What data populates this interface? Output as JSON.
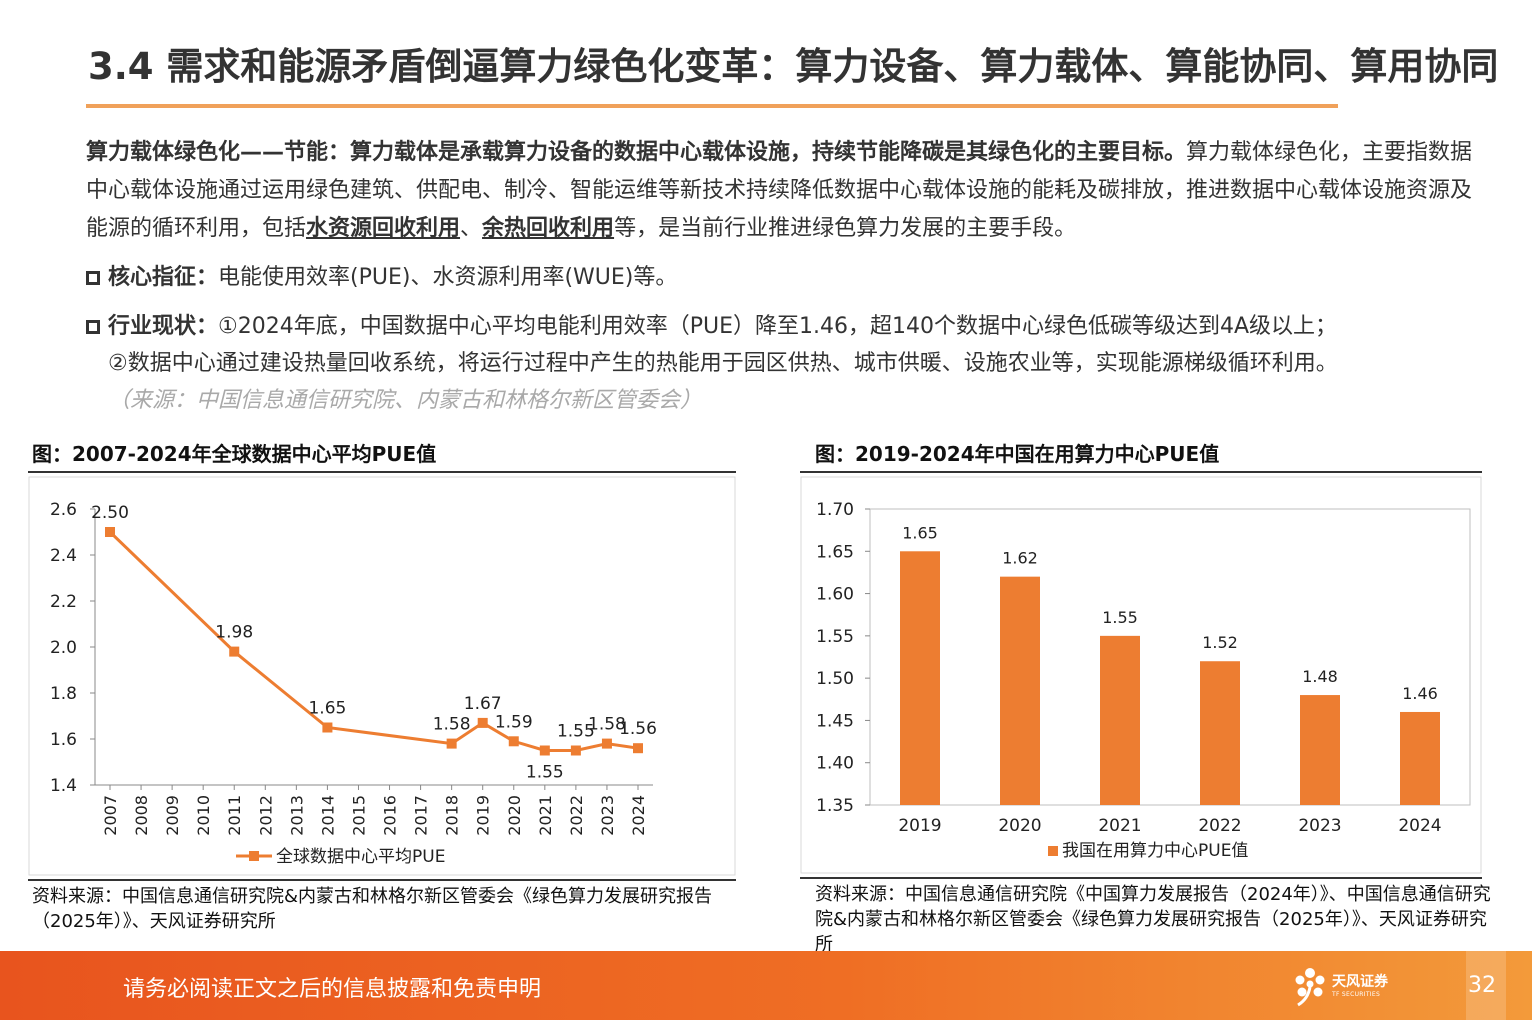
{
  "header": {
    "title": "3.4 需求和能源矛盾倒逼算力绿色化变革：算力设备、算力载体、算能协同、算用协同"
  },
  "intro": {
    "lead_bold": "算力载体绿色化——节能：算力载体是承载算力设备的数据中心载体设施，持续节能降碳是其绿色化的主要目标。",
    "text_1": "算力载体绿色化，主要指数据中心载体设施通过运用绿色建筑、供配电、制冷、智能运维等新技术持续降低数据中心载体设施的能耗及碳排放，推进数据中心载体设施资源及能源的循环利用，包括",
    "link_1": "水资源回收利用",
    "sep": "、",
    "link_2": "余热回收利用",
    "text_2": "等，是当前行业推进绿色算力发展的主要手段。"
  },
  "bullets": {
    "core": {
      "label": "核心指征：",
      "text": "电能使用效率(PUE)、水资源利用率(WUE)等。"
    },
    "status": {
      "label": "行业现状：",
      "line_1": "①2024年底，中国数据中心平均电能利用效率（PUE）降至1.46，超140个数据中心绿色低碳等级达到4A级以上；",
      "line_2": "②数据中心通过建设热量回收系统，将运行过程中产生的热能用于园区供热、城市供暖、设施农业等，实现能源梯级循环利用。",
      "source": "（来源：中国信息通信研究院、内蒙古和林格尔新区管委会）"
    }
  },
  "figures": {
    "left": {
      "title": "图：2007-2024年全球数据中心平均PUE值",
      "source": "资料来源：中国信息通信研究院&内蒙古和林格尔新区管委会《绿色算力发展研究报告（2025年）》、天风证券研究所"
    },
    "right": {
      "title": "图：2019-2024年中国在用算力中心PUE值",
      "source": "资料来源：中国信息通信研究院《中国算力发展报告（2024年）》、中国信息通信研究院&内蒙古和林格尔新区管委会《绿色算力发展研究报告（2025年）》、天风证券研究所"
    }
  },
  "chart_data": [
    {
      "type": "line",
      "categories": [
        "2007",
        "2008",
        "2009",
        "2010",
        "2011",
        "2012",
        "2013",
        "2014",
        "2015",
        "2016",
        "2017",
        "2018",
        "2019",
        "2020",
        "2021",
        "2022",
        "2023",
        "2024"
      ],
      "series": [
        {
          "name": "全球数据中心平均PUE",
          "points": [
            {
              "x": "2007",
              "y": 2.5,
              "label": "2.50"
            },
            {
              "x": "2011",
              "y": 1.98,
              "label": "1.98"
            },
            {
              "x": "2014",
              "y": 1.65,
              "label": "1.65"
            },
            {
              "x": "2018",
              "y": 1.58,
              "label": "1.58"
            },
            {
              "x": "2019",
              "y": 1.67,
              "label": "1.67"
            },
            {
              "x": "2020",
              "y": 1.59,
              "label": "1.59"
            },
            {
              "x": "2021",
              "y": 1.55,
              "label": "1.55"
            },
            {
              "x": "2022",
              "y": 1.55,
              "label": "1.55"
            },
            {
              "x": "2023",
              "y": 1.58,
              "label": "1.58"
            },
            {
              "x": "2024",
              "y": 1.56,
              "label": "1.56"
            }
          ],
          "color": "#ed7d31"
        }
      ],
      "yticks": [
        "1.4",
        "1.6",
        "1.8",
        "2.0",
        "2.2",
        "2.4",
        "2.6"
      ],
      "ylim": [
        1.4,
        2.6
      ],
      "legend": "bottom",
      "grid": false
    },
    {
      "type": "bar",
      "categories": [
        "2019",
        "2020",
        "2021",
        "2022",
        "2023",
        "2024"
      ],
      "series": [
        {
          "name": "我国在用算力中心PUE值",
          "values": [
            1.65,
            1.62,
            1.55,
            1.52,
            1.48,
            1.46
          ],
          "labels": [
            "1.65",
            "1.62",
            "1.55",
            "1.52",
            "1.48",
            "1.46"
          ],
          "color": "#ed7d31"
        }
      ],
      "yticks": [
        "1.35",
        "1.40",
        "1.45",
        "1.50",
        "1.55",
        "1.60",
        "1.65",
        "1.70"
      ],
      "ylim": [
        1.35,
        1.7
      ],
      "legend": "bottom",
      "grid": false
    }
  ],
  "footer": {
    "disclaimer": "请务必阅读正文之后的信息披露和免责申明",
    "logo_name": "天风证券",
    "logo_sub": "TF SECURITIES",
    "page": "32",
    "logo_icon": "flower-logo-icon"
  }
}
